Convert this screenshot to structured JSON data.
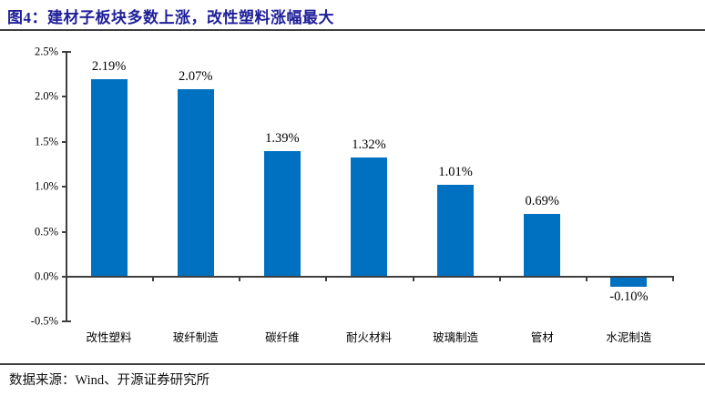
{
  "figure": {
    "title": "图4：建材子板块多数上涨，改性塑料涨幅最大",
    "source": "数据来源：Wind、开源证券研究所"
  },
  "colors": {
    "bar": "#0070c0",
    "title_text": "#1f1f99",
    "axis": "#3f3f3f"
  },
  "chart_data": {
    "type": "bar",
    "title": "图4：建材子板块多数上涨，改性塑料涨幅最大",
    "categories": [
      "改性塑料",
      "玻纤制造",
      "碳纤维",
      "耐火材料",
      "玻璃制造",
      "管材",
      "水泥制造"
    ],
    "values": [
      2.19,
      2.07,
      1.39,
      1.32,
      1.01,
      0.69,
      -0.1
    ],
    "value_labels": [
      "2.19%",
      "2.07%",
      "1.39%",
      "1.32%",
      "1.01%",
      "0.69%",
      "-0.10%"
    ],
    "xlabel": "",
    "ylabel": "",
    "ylim": [
      -0.5,
      2.5
    ],
    "ytick_step": 0.5,
    "ytick_labels": [
      "2.5%",
      "2.0%",
      "1.5%",
      "1.0%",
      "0.5%",
      "0.0%",
      "-0.5%"
    ],
    "grid": false,
    "legend": false
  }
}
